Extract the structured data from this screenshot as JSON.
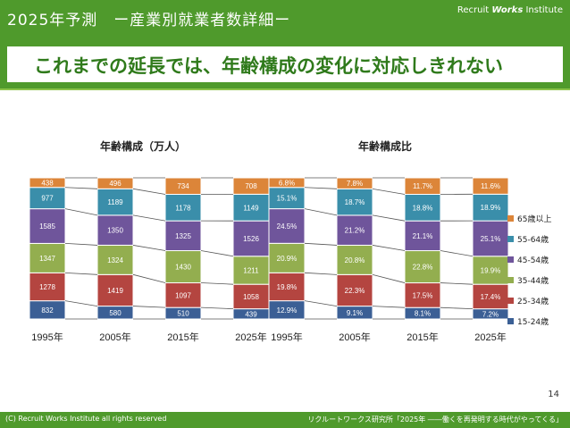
{
  "header": {
    "title": "2025年予測　ー産業別就業者数詳細ー",
    "logo_prefix": "Recruit",
    "logo_brand": "Works",
    "logo_suffix": "Institute",
    "headline": "これまでの延長では、年齢構成の変化に対応しきれない"
  },
  "footer": {
    "page_number": "14",
    "copyright": "(C) Recruit Works Institute all rights reserved",
    "source": "リクルートワークス研究所「2025年 ――働くを再発明する時代がやってくる」"
  },
  "colors": {
    "15-24歳": "#3b5f95",
    "25-34歳": "#b44540",
    "35-44歳": "#93ae4f",
    "45-54歳": "#6f559b",
    "55-64歳": "#3a8eaa",
    "65歳以上": "#dc8539",
    "brand_green": "#4f9a2c"
  },
  "chart_data": [
    {
      "type": "bar",
      "stacked": true,
      "title": "年齢構成（万人）",
      "categories": [
        "1995年",
        "2005年",
        "2015年",
        "2025年"
      ],
      "series": [
        {
          "name": "15-24歳",
          "values": [
            832,
            580,
            510,
            439
          ],
          "labels": [
            "832",
            "580",
            "510",
            "439"
          ]
        },
        {
          "name": "25-34歳",
          "values": [
            1278,
            1419,
            1097,
            1058
          ],
          "labels": [
            "1278",
            "1419",
            "1097",
            "1058"
          ]
        },
        {
          "name": "35-44歳",
          "values": [
            1347,
            1324,
            1430,
            1211
          ],
          "labels": [
            "1347",
            "1324",
            "1430",
            "1211"
          ]
        },
        {
          "name": "45-54歳",
          "values": [
            1585,
            1350,
            1325,
            1526
          ],
          "labels": [
            "1585",
            "1350",
            "1325",
            "1526"
          ]
        },
        {
          "name": "55-64歳",
          "values": [
            977,
            1189,
            1178,
            1149
          ],
          "labels": [
            "977",
            "1189",
            "1178",
            "1149"
          ]
        },
        {
          "name": "65歳以上",
          "values": [
            438,
            496,
            734,
            708
          ],
          "labels": [
            "438",
            "496",
            "734",
            "708"
          ]
        }
      ],
      "legend": "none",
      "grid": false
    },
    {
      "type": "bar",
      "stacked": true,
      "title": "年齢構成比",
      "categories": [
        "1995年",
        "2005年",
        "2015年",
        "2025年"
      ],
      "series": [
        {
          "name": "15-24歳",
          "values": [
            12.9,
            9.1,
            8.1,
            7.2
          ],
          "labels": [
            "12.9%",
            "9.1%",
            "8.1%",
            "7.2%"
          ]
        },
        {
          "name": "25-34歳",
          "values": [
            19.8,
            22.3,
            17.5,
            17.4
          ],
          "labels": [
            "19.8%",
            "22.3%",
            "17.5%",
            "17.4%"
          ]
        },
        {
          "name": "35-44歳",
          "values": [
            20.9,
            20.8,
            22.8,
            19.9
          ],
          "labels": [
            "20.9%",
            "20.8%",
            "22.8%",
            "19.9%"
          ]
        },
        {
          "name": "45-54歳",
          "values": [
            24.5,
            21.2,
            21.1,
            25.1
          ],
          "labels": [
            "24.5%",
            "21.2%",
            "21.1%",
            "25.1%"
          ]
        },
        {
          "name": "55-64歳",
          "values": [
            15.1,
            18.7,
            18.8,
            18.9
          ],
          "labels": [
            "15.1%",
            "18.7%",
            "18.8%",
            "18.9%"
          ]
        },
        {
          "name": "65歳以上",
          "values": [
            6.8,
            7.8,
            11.7,
            11.6
          ],
          "labels": [
            "6.8%",
            "7.8%",
            "11.7%",
            "11.6%"
          ]
        }
      ],
      "legend": "right",
      "grid": false
    }
  ]
}
